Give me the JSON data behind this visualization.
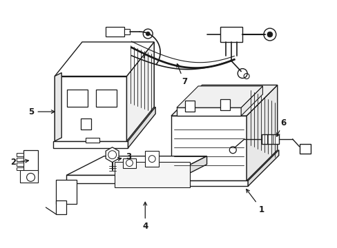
{
  "background_color": "#ffffff",
  "line_color": "#1a1a1a",
  "line_width": 1.0,
  "label_fontsize": 8.5,
  "fig_width": 4.89,
  "fig_height": 3.6,
  "dpi": 100
}
